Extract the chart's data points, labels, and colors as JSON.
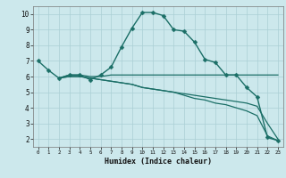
{
  "xlabel": "Humidex (Indice chaleur)",
  "bg_color": "#cce8ec",
  "grid_color": "#aacfd4",
  "line_color": "#1a6e66",
  "xlim": [
    -0.5,
    23.5
  ],
  "ylim": [
    1.5,
    10.5
  ],
  "xticks": [
    0,
    1,
    2,
    3,
    4,
    5,
    6,
    7,
    8,
    9,
    10,
    11,
    12,
    13,
    14,
    15,
    16,
    17,
    18,
    19,
    20,
    21,
    22,
    23
  ],
  "yticks": [
    2,
    3,
    4,
    5,
    6,
    7,
    8,
    9,
    10
  ],
  "series": [
    {
      "x": [
        0,
        1,
        2,
        3,
        4,
        5,
        6,
        7,
        8,
        9,
        10,
        11,
        12,
        13,
        14,
        15,
        16,
        17,
        18,
        19,
        20,
        21,
        22,
        23
      ],
      "y": [
        7.0,
        6.4,
        5.9,
        6.1,
        6.1,
        5.8,
        6.1,
        6.6,
        7.9,
        9.1,
        10.1,
        10.1,
        9.9,
        9.0,
        8.9,
        8.2,
        7.1,
        6.9,
        6.1,
        6.1,
        5.3,
        4.7,
        2.1,
        1.9
      ],
      "marker": true
    },
    {
      "x": [
        2,
        3,
        4,
        5,
        6,
        7,
        8,
        9,
        10,
        11,
        12,
        13,
        14,
        15,
        16,
        17,
        18,
        19,
        20,
        21,
        22,
        23
      ],
      "y": [
        5.9,
        6.1,
        6.1,
        6.0,
        6.0,
        6.1,
        6.1,
        6.1,
        6.1,
        6.1,
        6.1,
        6.1,
        6.1,
        6.1,
        6.1,
        6.1,
        6.1,
        6.1,
        6.1,
        6.1,
        6.1,
        6.1
      ],
      "marker": false
    },
    {
      "x": [
        2,
        3,
        4,
        5,
        6,
        7,
        8,
        9,
        10,
        11,
        12,
        13,
        14,
        15,
        16,
        17,
        18,
        19,
        20,
        21,
        22,
        23
      ],
      "y": [
        5.9,
        6.0,
        6.0,
        5.9,
        5.8,
        5.7,
        5.6,
        5.5,
        5.3,
        5.2,
        5.1,
        5.0,
        4.8,
        4.6,
        4.5,
        4.3,
        4.2,
        4.0,
        3.8,
        3.5,
        2.2,
        1.9
      ],
      "marker": false
    },
    {
      "x": [
        2,
        3,
        4,
        5,
        6,
        7,
        8,
        9,
        10,
        11,
        12,
        13,
        14,
        15,
        16,
        17,
        18,
        19,
        20,
        21,
        22,
        23
      ],
      "y": [
        5.9,
        6.0,
        6.0,
        5.9,
        5.8,
        5.7,
        5.6,
        5.5,
        5.3,
        5.2,
        5.1,
        5.0,
        4.9,
        4.8,
        4.7,
        4.6,
        4.5,
        4.4,
        4.3,
        4.1,
        3.0,
        2.0
      ],
      "marker": false
    }
  ]
}
